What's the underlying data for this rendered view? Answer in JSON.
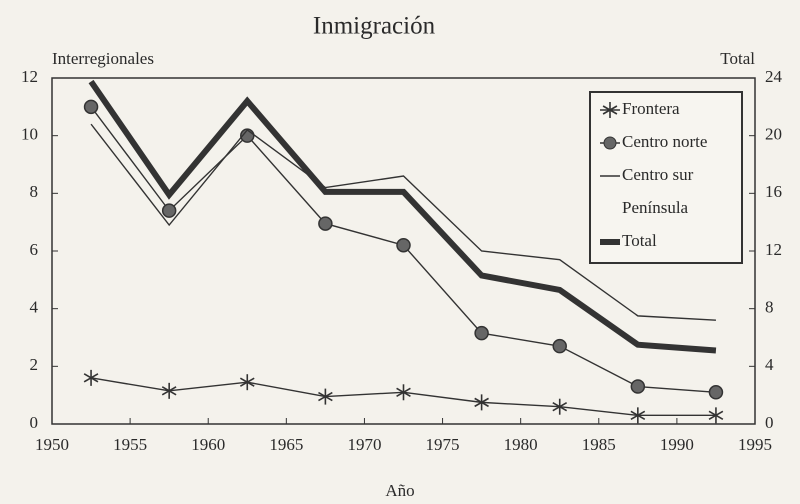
{
  "chart_data": {
    "type": "line",
    "title": "Inmigración",
    "y_label": "Interregionales",
    "y2_label": "Total",
    "x_label": "Año",
    "x": [
      1952.5,
      1957.5,
      1962.5,
      1967.5,
      1972.5,
      1977.5,
      1982.5,
      1987.5,
      1992.5
    ],
    "series": [
      {
        "name": "Frontera",
        "color": "#333333",
        "marker": "star",
        "values": [
          1.6,
          1.15,
          1.45,
          0.95,
          1.1,
          0.75,
          0.6,
          0.3,
          0.3
        ]
      },
      {
        "name": "Centro norte",
        "color": "#333333",
        "marker": "circle",
        "values": [
          11.0,
          7.4,
          10.0,
          6.95,
          6.2,
          3.15,
          2.7,
          1.3,
          1.1
        ]
      },
      {
        "name": "Centro sur",
        "color": "#333333",
        "values": [
          10.4,
          6.9,
          10.2,
          8.2,
          8.6,
          6.0,
          5.7,
          3.75,
          3.6
        ]
      },
      {
        "name": "Península",
        "color": "#333333",
        "values": [
          null,
          null,
          null,
          null,
          null,
          null,
          null,
          null,
          null
        ]
      },
      {
        "name": "Total",
        "color": "#333333",
        "axis": "y2",
        "values": [
          23.75,
          15.9,
          22.4,
          16.1,
          16.1,
          10.3,
          9.3,
          5.5,
          5.1
        ]
      }
    ],
    "xlim": [
      1950,
      1995
    ],
    "xticks": [
      1950,
      1955,
      1960,
      1965,
      1970,
      1975,
      1980,
      1985,
      1990,
      1995
    ],
    "ylim": [
      0,
      12
    ],
    "yticks": [
      0,
      2,
      4,
      6,
      8,
      10,
      12
    ],
    "y2lim": [
      0,
      24
    ],
    "y2ticks": [
      0,
      4,
      8,
      12,
      16,
      20,
      24
    ],
    "legend": "top-right",
    "grid": false
  }
}
